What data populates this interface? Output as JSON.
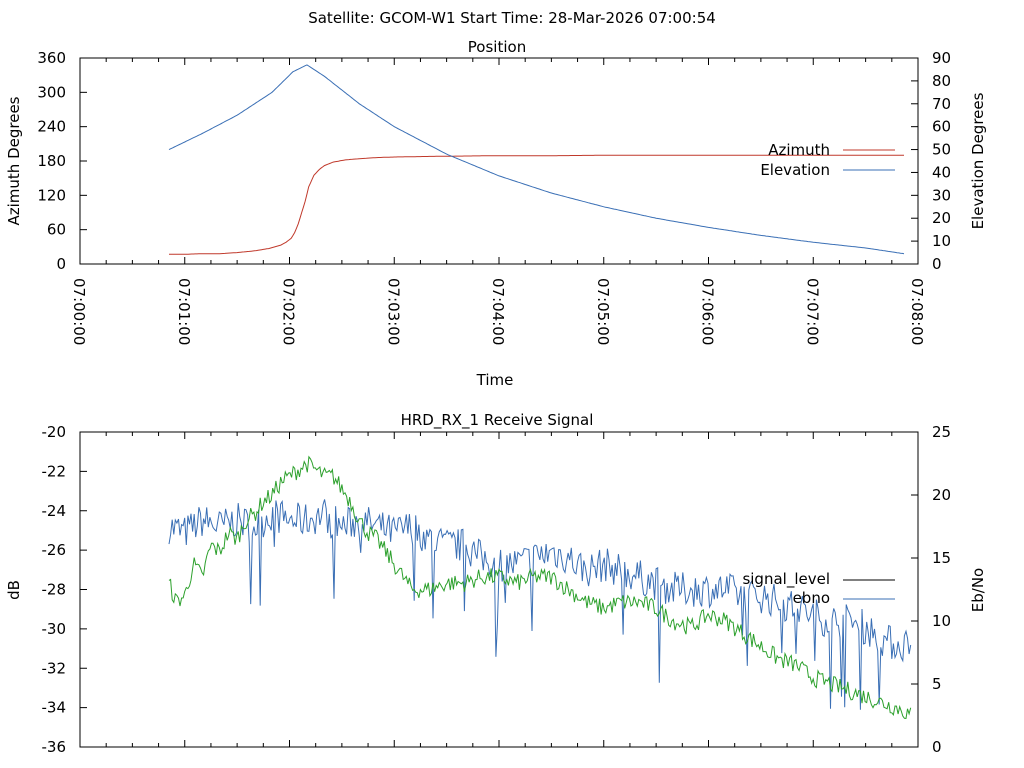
{
  "suptitle": "Satellite: GCOM-W1    Start Time: 28-Mar-2026 07:00:54",
  "colors": {
    "azimuth": "#c0392b",
    "elevation": "#3a6fb5",
    "signal_level": "#000000",
    "ebno": "#3a6fb5",
    "green_series": "#2ca02c",
    "axes": "#000000"
  },
  "chart_data": [
    {
      "type": "line",
      "title": "Position",
      "xlabel": "Time",
      "ylabel": "Azimuth Degrees",
      "y2label": "Elevation Degrees",
      "xlim": [
        0,
        480
      ],
      "ylim": [
        0,
        360
      ],
      "y2lim": [
        0,
        90
      ],
      "yticks": [
        0,
        60,
        120,
        180,
        240,
        300,
        360
      ],
      "y2ticks": [
        0,
        10,
        20,
        30,
        40,
        50,
        60,
        70,
        80,
        90
      ],
      "xticks": [
        0,
        60,
        120,
        180,
        240,
        300,
        360,
        420,
        480
      ],
      "xticklabels": [
        "07:00:00",
        "07:01:00",
        "07:02:00",
        "07:03:00",
        "07:04:00",
        "07:05:00",
        "07:06:00",
        "07:07:00",
        "07:08:00"
      ],
      "legend": {
        "placement": "right-middle",
        "entries": [
          "Azimuth",
          "Elevation"
        ]
      },
      "series": [
        {
          "name": "Azimuth",
          "axis": "left",
          "color": "#c0392b",
          "x": [
            51,
            60,
            70,
            80,
            90,
            100,
            108,
            115,
            118,
            121,
            123,
            125,
            127,
            129,
            131,
            134,
            137,
            140,
            145,
            152,
            160,
            170,
            180,
            200,
            230,
            260,
            300,
            340,
            380,
            420,
            450,
            472
          ],
          "y": [
            17,
            17,
            18,
            18,
            20,
            23,
            27,
            33,
            38,
            45,
            55,
            70,
            90,
            110,
            135,
            155,
            165,
            172,
            178,
            182,
            184,
            186,
            187,
            188,
            189,
            189,
            190,
            190,
            190,
            190,
            190,
            190
          ]
        },
        {
          "name": "Elevation",
          "axis": "right",
          "color": "#3a6fb5",
          "x": [
            51,
            70,
            90,
            110,
            122,
            130,
            140,
            160,
            180,
            210,
            240,
            270,
            300,
            330,
            360,
            390,
            420,
            450,
            472
          ],
          "y": [
            50,
            57,
            65,
            75,
            84,
            87,
            82,
            70,
            60,
            48,
            38.5,
            31,
            25,
            20,
            16,
            12.5,
            9.5,
            7,
            4.5
          ]
        }
      ]
    },
    {
      "type": "line",
      "title": "HRD_RX_1 Receive Signal",
      "ylabel": "dB",
      "y2label": "Eb/No",
      "xlim": [
        0,
        480
      ],
      "ylim": [
        -36,
        -20
      ],
      "y2lim": [
        0,
        25
      ],
      "yticks": [
        -36,
        -34,
        -32,
        -30,
        -28,
        -26,
        -24,
        -22,
        -20
      ],
      "y2ticks": [
        0,
        5,
        10,
        15,
        20,
        25
      ],
      "xticks": [
        0,
        60,
        120,
        180,
        240,
        300,
        360,
        420,
        480
      ],
      "legend": {
        "placement": "right-middle",
        "entries": [
          "signal_level",
          "ebno"
        ]
      },
      "series": [
        {
          "name": "signal_level",
          "axis": "left",
          "color": "#000000",
          "x": [],
          "y": []
        },
        {
          "name": "ebno",
          "axis": "right",
          "color": "#3a6fb5",
          "noise": 1.4,
          "x": [
            51,
            60,
            70,
            80,
            90,
            100,
            110,
            120,
            130,
            140,
            150,
            160,
            170,
            180,
            190,
            200,
            210,
            220,
            230,
            240,
            250,
            260,
            270,
            280,
            290,
            300,
            310,
            320,
            330,
            340,
            350,
            360,
            370,
            380,
            390,
            400,
            410,
            420,
            430,
            440,
            450,
            460,
            470,
            476
          ],
          "y": [
            17.5,
            17,
            18,
            17.5,
            18,
            17.5,
            18.5,
            18,
            18,
            18.5,
            17.5,
            18,
            17.5,
            17,
            17.5,
            16.5,
            16,
            16,
            15,
            14.5,
            14.5,
            15,
            15.5,
            15,
            14,
            14.5,
            14,
            13.5,
            13,
            12.5,
            12.5,
            12.5,
            12.5,
            12,
            12,
            11.5,
            11,
            10.5,
            10,
            10,
            9.5,
            8.5,
            8,
            8.5
          ]
        },
        {
          "name": "",
          "axis": "right",
          "color": "#2ca02c",
          "noise": 0.7,
          "x": [
            51,
            55,
            60,
            65,
            70,
            75,
            80,
            85,
            90,
            95,
            100,
            105,
            110,
            115,
            120,
            125,
            130,
            135,
            140,
            145,
            150,
            155,
            160,
            165,
            170,
            175,
            180,
            185,
            190,
            195,
            200,
            210,
            220,
            230,
            240,
            250,
            260,
            270,
            280,
            290,
            300,
            310,
            320,
            330,
            340,
            350,
            360,
            370,
            380,
            390,
            400,
            410,
            420,
            430,
            440,
            450,
            460,
            470,
            476
          ],
          "y": [
            13,
            11.5,
            12,
            14.5,
            13.5,
            16,
            15.5,
            17,
            16.5,
            18,
            18.5,
            19.5,
            20,
            21,
            21.5,
            22,
            22.5,
            22,
            21.5,
            21.5,
            20.5,
            19.5,
            18,
            17,
            16.5,
            15.5,
            14.5,
            13.5,
            12.5,
            12.5,
            12.5,
            13,
            13,
            13.5,
            13.5,
            13,
            13.5,
            13.5,
            12.5,
            11.5,
            11,
            11.5,
            11.5,
            11,
            10,
            9.5,
            10.5,
            10,
            9,
            8,
            7,
            6.5,
            5.5,
            5,
            4.5,
            4,
            3.5,
            3,
            2.5
          ]
        }
      ]
    }
  ]
}
